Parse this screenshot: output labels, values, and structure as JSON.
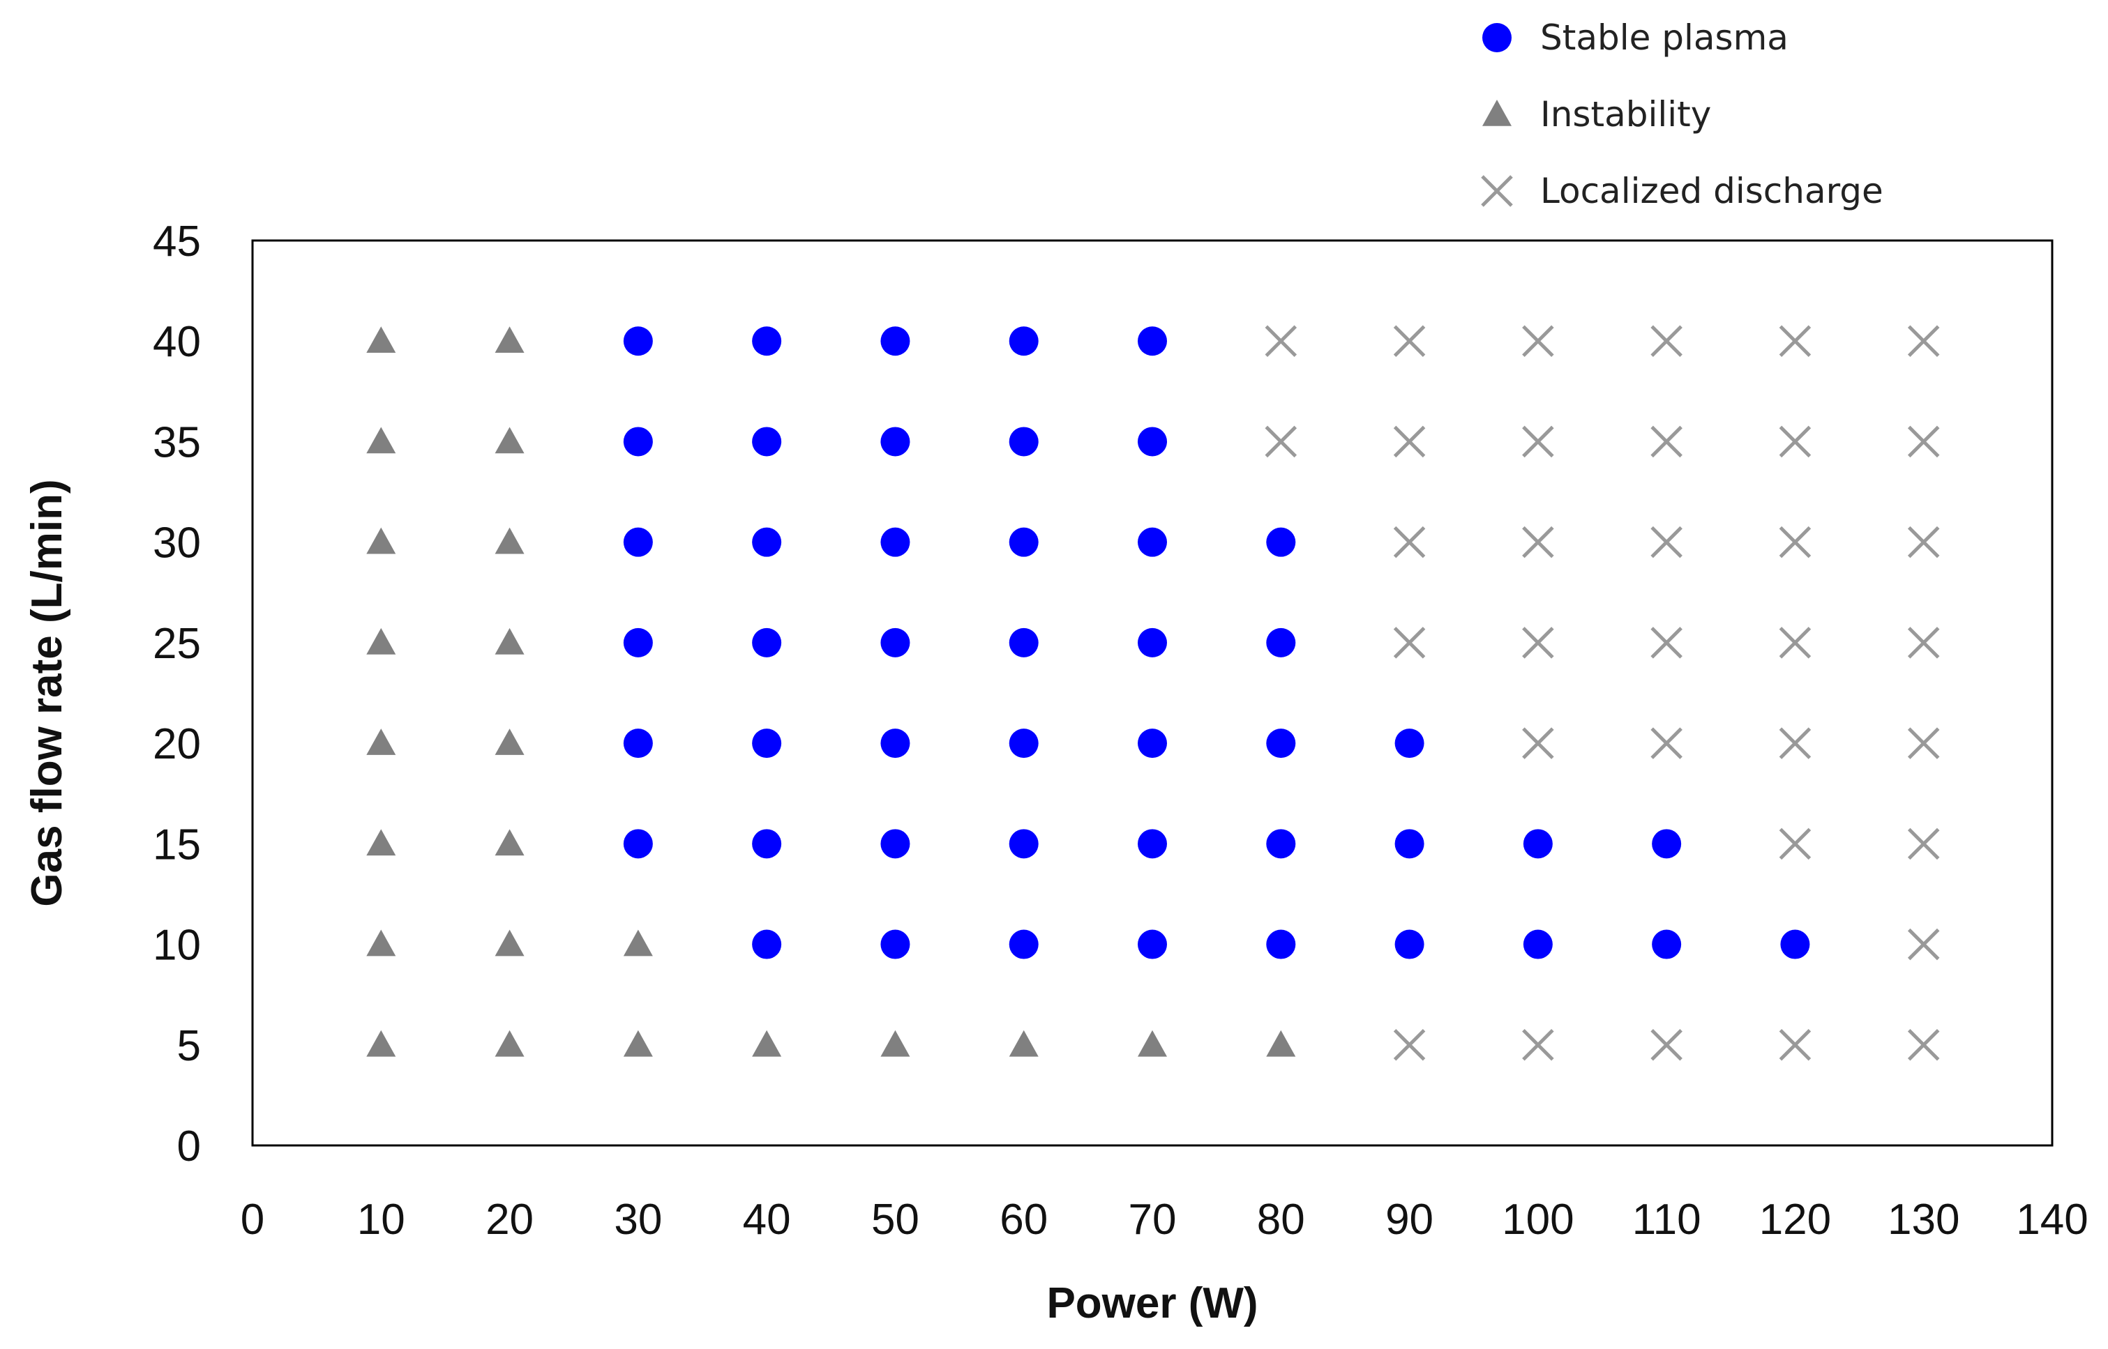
{
  "chart_data": {
    "type": "scatter",
    "xlabel": "Power (W)",
    "ylabel": "Gas flow rate (L/min)",
    "xlim": [
      0,
      140
    ],
    "ylim": [
      0,
      45
    ],
    "x_ticks": [
      0,
      10,
      20,
      30,
      40,
      50,
      60,
      70,
      80,
      90,
      100,
      110,
      120,
      130,
      140
    ],
    "y_ticks": [
      0,
      5,
      10,
      15,
      20,
      25,
      30,
      35,
      40,
      45
    ],
    "grid": false,
    "legend_position": "top-right",
    "series": [
      {
        "name": "Stable plasma",
        "marker": "circle",
        "color": "#0000ff",
        "points": [
          [
            30,
            40
          ],
          [
            40,
            40
          ],
          [
            50,
            40
          ],
          [
            60,
            40
          ],
          [
            70,
            40
          ],
          [
            30,
            35
          ],
          [
            40,
            35
          ],
          [
            50,
            35
          ],
          [
            60,
            35
          ],
          [
            70,
            35
          ],
          [
            30,
            30
          ],
          [
            40,
            30
          ],
          [
            50,
            30
          ],
          [
            60,
            30
          ],
          [
            70,
            30
          ],
          [
            80,
            30
          ],
          [
            30,
            25
          ],
          [
            40,
            25
          ],
          [
            50,
            25
          ],
          [
            60,
            25
          ],
          [
            70,
            25
          ],
          [
            80,
            25
          ],
          [
            30,
            20
          ],
          [
            40,
            20
          ],
          [
            50,
            20
          ],
          [
            60,
            20
          ],
          [
            70,
            20
          ],
          [
            80,
            20
          ],
          [
            90,
            20
          ],
          [
            30,
            15
          ],
          [
            40,
            15
          ],
          [
            50,
            15
          ],
          [
            60,
            15
          ],
          [
            70,
            15
          ],
          [
            80,
            15
          ],
          [
            90,
            15
          ],
          [
            100,
            15
          ],
          [
            110,
            15
          ],
          [
            40,
            10
          ],
          [
            50,
            10
          ],
          [
            60,
            10
          ],
          [
            70,
            10
          ],
          [
            80,
            10
          ],
          [
            90,
            10
          ],
          [
            100,
            10
          ],
          [
            110,
            10
          ],
          [
            120,
            10
          ]
        ]
      },
      {
        "name": "Instability",
        "marker": "triangle",
        "color": "#808080",
        "points": [
          [
            10,
            40
          ],
          [
            20,
            40
          ],
          [
            10,
            35
          ],
          [
            20,
            35
          ],
          [
            10,
            30
          ],
          [
            20,
            30
          ],
          [
            10,
            25
          ],
          [
            20,
            25
          ],
          [
            10,
            20
          ],
          [
            20,
            20
          ],
          [
            10,
            15
          ],
          [
            20,
            15
          ],
          [
            10,
            10
          ],
          [
            20,
            10
          ],
          [
            30,
            10
          ],
          [
            10,
            5
          ],
          [
            20,
            5
          ],
          [
            30,
            5
          ],
          [
            40,
            5
          ],
          [
            50,
            5
          ],
          [
            60,
            5
          ],
          [
            70,
            5
          ],
          [
            80,
            5
          ]
        ]
      },
      {
        "name": "Localized discharge",
        "marker": "x",
        "color": "#999999",
        "points": [
          [
            80,
            40
          ],
          [
            90,
            40
          ],
          [
            100,
            40
          ],
          [
            110,
            40
          ],
          [
            120,
            40
          ],
          [
            130,
            40
          ],
          [
            80,
            35
          ],
          [
            90,
            35
          ],
          [
            100,
            35
          ],
          [
            110,
            35
          ],
          [
            120,
            35
          ],
          [
            130,
            35
          ],
          [
            90,
            30
          ],
          [
            100,
            30
          ],
          [
            110,
            30
          ],
          [
            120,
            30
          ],
          [
            130,
            30
          ],
          [
            90,
            25
          ],
          [
            100,
            25
          ],
          [
            110,
            25
          ],
          [
            120,
            25
          ],
          [
            130,
            25
          ],
          [
            100,
            20
          ],
          [
            110,
            20
          ],
          [
            120,
            20
          ],
          [
            130,
            20
          ],
          [
            120,
            15
          ],
          [
            130,
            15
          ],
          [
            130,
            10
          ],
          [
            90,
            5
          ],
          [
            100,
            5
          ],
          [
            110,
            5
          ],
          [
            120,
            5
          ],
          [
            130,
            5
          ]
        ]
      }
    ]
  }
}
